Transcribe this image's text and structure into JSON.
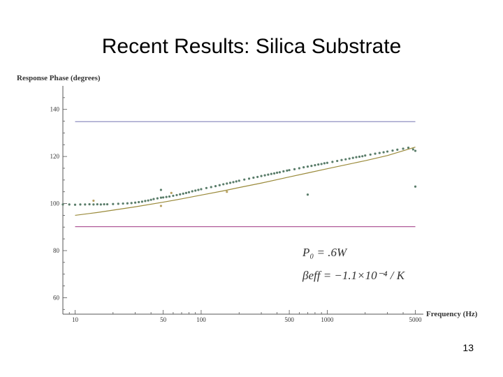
{
  "slide": {
    "title": "Recent Results: Silica Substrate",
    "page_number": "13"
  },
  "chart_data": {
    "type": "scatter",
    "ylabel": "Response Phase (degrees)",
    "xlabel": "Frequency (Hz)",
    "x_scale": "log",
    "xlim": [
      8,
      5500
    ],
    "ylim": [
      53,
      150
    ],
    "x_ticks": [
      10,
      50,
      100,
      500,
      1000,
      5000
    ],
    "x_tick_labels": [
      "10",
      "50",
      "100",
      "500",
      "1000",
      "5000"
    ],
    "y_ticks": [
      60,
      80,
      100,
      120,
      140
    ],
    "y_tick_labels": [
      "60",
      "80",
      "100",
      "120",
      "140"
    ],
    "grid": false,
    "legend": "none",
    "series": [
      {
        "type": "points",
        "color": "#5a7d6a",
        "x": [
          8,
          9,
          10,
          11,
          12,
          13,
          14,
          15,
          16,
          17,
          18,
          20,
          22,
          24,
          26,
          28,
          30,
          32,
          34,
          36,
          38,
          40,
          42,
          45,
          48,
          50,
          53,
          56,
          60,
          64,
          68,
          72,
          76,
          80,
          85,
          90,
          95,
          100,
          110,
          120,
          130,
          140,
          150,
          160,
          170,
          180,
          190,
          200,
          220,
          240,
          260,
          280,
          300,
          320,
          340,
          360,
          380,
          400,
          420,
          450,
          480,
          500,
          550,
          600,
          650,
          700,
          750,
          800,
          850,
          900,
          950,
          1000,
          1100,
          1200,
          1300,
          1400,
          1500,
          1600,
          1700,
          1800,
          1900,
          2000,
          2200,
          2400,
          2600,
          2800,
          3000,
          3300,
          3600,
          4000,
          4400,
          4800,
          5000
        ],
        "y": [
          99.6,
          99.6,
          99.5,
          99.6,
          99.6,
          99.7,
          99.6,
          99.7,
          99.6,
          99.7,
          99.7,
          99.8,
          99.9,
          100.0,
          100.1,
          100.2,
          100.4,
          100.6,
          100.8,
          101.1,
          101.3,
          101.6,
          101.9,
          102.2,
          102.5,
          102.6,
          102.8,
          103.0,
          103.3,
          103.6,
          103.9,
          104.2,
          104.5,
          104.8,
          105.2,
          105.5,
          105.8,
          106.1,
          106.6,
          107.0,
          107.4,
          107.8,
          108.2,
          108.5,
          108.8,
          109.1,
          109.4,
          109.7,
          110.2,
          110.6,
          111.0,
          111.3,
          111.7,
          112.0,
          112.3,
          112.6,
          112.8,
          113.1,
          113.3,
          113.7,
          114.0,
          114.2,
          114.6,
          115.0,
          115.4,
          115.7,
          116.0,
          116.3,
          116.6,
          116.8,
          117.1,
          117.3,
          117.7,
          118.1,
          118.5,
          118.8,
          119.1,
          119.4,
          119.7,
          119.9,
          120.1,
          120.4,
          120.8,
          121.2,
          121.5,
          121.8,
          122.1,
          122.5,
          122.9,
          123.3,
          123.7,
          123.0,
          122.4
        ]
      },
      {
        "type": "points",
        "color": "#5a7d6a",
        "x": [
          48,
          700,
          5000
        ],
        "y": [
          105.8,
          103.8,
          107.2
        ]
      },
      {
        "type": "points",
        "color": "#b8a060",
        "x": [
          14,
          48,
          58,
          160
        ],
        "y": [
          101.2,
          99.0,
          104.5,
          105.0
        ]
      },
      {
        "type": "line",
        "color": "#9a8a3a",
        "x": [
          10,
          15,
          20,
          30,
          50,
          70,
          100,
          150,
          200,
          300,
          500,
          700,
          1000,
          1500,
          2000,
          3000,
          5000
        ],
        "y": [
          95.0,
          96.2,
          97.2,
          98.6,
          100.6,
          102.0,
          103.6,
          105.4,
          106.8,
          108.7,
          111.3,
          113.0,
          114.8,
          116.8,
          118.2,
          120.4,
          124.0
        ]
      },
      {
        "type": "line",
        "color": "#8f8fc0",
        "x": [
          10,
          5000
        ],
        "y": [
          134.8,
          134.8
        ]
      },
      {
        "type": "line",
        "color": "#b05a98",
        "x": [
          10,
          5000
        ],
        "y": [
          90.2,
          90.2
        ]
      }
    ],
    "annotations": [
      {
        "text": "P₀ = .6W"
      },
      {
        "text": "βeff = −1.1×10⁻⁴ / K"
      }
    ]
  }
}
